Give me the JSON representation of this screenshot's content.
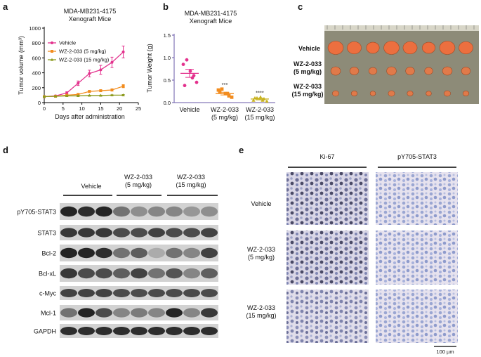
{
  "panel_labels": [
    "a",
    "b",
    "c",
    "d",
    "e"
  ],
  "chart_data": [
    {
      "type": "line",
      "title": "MDA-MB231-4175\nXenograft Mice",
      "x_label": "Days after administration",
      "y_label": "Tumor volume (mm³)",
      "x": [
        0,
        3,
        6,
        9,
        12,
        15,
        18,
        21
      ],
      "series": [
        {
          "name": "Vehicle",
          "color": "#e3318d",
          "marker": "circle",
          "values": [
            80,
            90,
            130,
            260,
            390,
            440,
            540,
            680
          ],
          "errors": [
            10,
            10,
            15,
            30,
            45,
            60,
            70,
            80
          ]
        },
        {
          "name": "WZ-2-033 (5 mg/kg)",
          "color": "#f28c1e",
          "marker": "square",
          "values": [
            80,
            85,
            100,
            110,
            150,
            160,
            170,
            220
          ],
          "errors": [
            5,
            5,
            8,
            10,
            12,
            12,
            15,
            20
          ]
        },
        {
          "name": "WZ-2-033 (15 mg/kg)",
          "color": "#8c9a1e",
          "marker": "triangle",
          "values": [
            80,
            85,
            90,
            90,
            95,
            95,
            100,
            100
          ],
          "errors": [
            5,
            5,
            5,
            5,
            5,
            5,
            5,
            8
          ]
        }
      ],
      "xlim": [
        0,
        25
      ],
      "xticks": [
        0,
        5,
        10,
        15,
        20,
        25
      ],
      "ylim": [
        0,
        1000
      ],
      "yticks": [
        0,
        200,
        400,
        600,
        800,
        1000
      ],
      "legend": "upper left"
    },
    {
      "type": "scatter",
      "title": "MDA-MB231-4175\nXenograft Mice",
      "y_label": "Tumor Weight (g)",
      "categories": [
        "Vehicle",
        "WZ-2-033\n(5 mg/kg)",
        "WZ-2-033\n(15 mg/kg)"
      ],
      "series": [
        {
          "color": "#e3318d",
          "marker": "circle",
          "values": [
            0.85,
            0.95,
            0.7,
            0.6,
            0.45,
            0.38,
            0.55
          ],
          "mean": 0.65,
          "error": 0.09
        },
        {
          "color": "#f28c1e",
          "marker": "square",
          "values": [
            0.28,
            0.3,
            0.2,
            0.15,
            0.12,
            0.25,
            0.2
          ],
          "mean": 0.2,
          "error": 0.03,
          "annotation": "***"
        },
        {
          "color": "#c8b21e",
          "marker": "triangle",
          "values": [
            0.05,
            0.1,
            0.12,
            0.08,
            0.03,
            0.1,
            0.05
          ],
          "mean": 0.08,
          "error": 0.02,
          "annotation": "****"
        }
      ],
      "ylim": [
        0,
        1.5
      ],
      "yticks": [
        {
          "value": 0,
          "label": "0.0"
        },
        {
          "value": 0.5,
          "label": "0.5"
        },
        {
          "value": 1,
          "label": "1.0"
        },
        {
          "value": 1.5,
          "label": "1.5"
        }
      ]
    }
  ],
  "panel_c": {
    "row_labels": [
      "Vehicle",
      "WZ-2-033\n(5 mg/kg)",
      "WZ-2-033\n(15 mg/kg)"
    ]
  },
  "panel_d": {
    "group_labels": [
      "Vehicle",
      "WZ-2-033\n(5 mg/kg)",
      "WZ-2-033\n(15 mg/kg)"
    ],
    "row_labels": [
      "pY705-STAT3",
      "STAT3",
      "Bcl-2",
      "Bcl-xL",
      "c-Myc",
      "Mcl-1",
      "GAPDH"
    ]
  },
  "panel_e": {
    "column_labels": [
      "Ki-67",
      "pY705-STAT3"
    ],
    "row_labels": [
      "Vehicle",
      "WZ-2-033\n(5 mg/kg)",
      "WZ-2-033\n(15 mg/kg)"
    ],
    "scale_bar": "100 µm"
  }
}
